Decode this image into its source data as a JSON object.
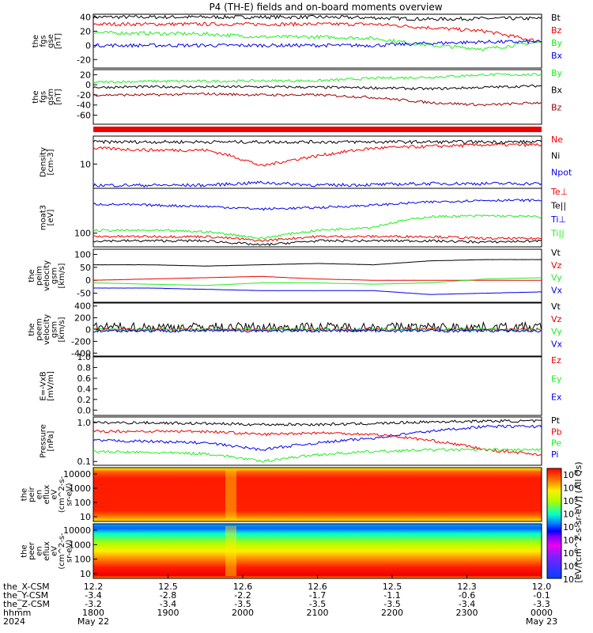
{
  "title": "P4 (TH-E) fields and on-board moments overview",
  "colors": {
    "black": "#000000",
    "red": "#ee0000",
    "green": "#22ee22",
    "blue": "#0000ee",
    "darkred": "#990000"
  },
  "chart_data": [
    {
      "id": "fgs_gse",
      "type": "line",
      "ylabel": [
        "the",
        "fgs",
        "gse",
        "[nT]"
      ],
      "yticks": [
        "40",
        "20",
        "0",
        "-20"
      ],
      "ylim": [
        -32,
        44
      ],
      "series": [
        {
          "name": "Bt",
          "color": "black",
          "values": [
            40,
            40,
            40,
            40,
            40,
            39,
            37,
            38,
            38
          ]
        },
        {
          "name": "Bz",
          "color": "red",
          "values": [
            30,
            30,
            30,
            30,
            30,
            30,
            25,
            20,
            5
          ]
        },
        {
          "name": "By",
          "color": "green",
          "values": [
            18,
            17,
            16,
            12,
            12,
            10,
            0,
            -5,
            5
          ]
        },
        {
          "name": "Bx",
          "color": "blue",
          "values": [
            0,
            0,
            0,
            0,
            0,
            0,
            3,
            5,
            5
          ]
        }
      ]
    },
    {
      "id": "fgs_gsm",
      "type": "line",
      "ylabel": [
        "the",
        "fgs",
        "gsm",
        "[nT]"
      ],
      "yticks": [
        "20",
        "0",
        "-20",
        "-40",
        "-60"
      ],
      "ylim": [
        -78,
        30
      ],
      "series": [
        {
          "name": "By",
          "color": "green",
          "values": [
            5,
            7,
            7,
            8,
            8,
            13,
            15,
            20,
            20
          ]
        },
        {
          "name": "Bx",
          "color": "black",
          "values": [
            -5,
            -4,
            -4,
            -4,
            -5,
            -6,
            -8,
            -5,
            -2
          ]
        },
        {
          "name": "Bz",
          "color": "darkred",
          "values": [
            -20,
            -20,
            -18,
            -20,
            -20,
            -25,
            -35,
            -40,
            -35
          ]
        }
      ]
    },
    {
      "id": "density",
      "type": "line",
      "log": true,
      "ylabel": [
        "Density",
        "[cm-3]"
      ],
      "yticks": [
        "10"
      ],
      "ylim": [
        3,
        40
      ],
      "series": [
        {
          "name": "Ne",
          "color": "red",
          "values": [
            22,
            20,
            20,
            9,
            15,
            22,
            24,
            26,
            26
          ]
        },
        {
          "name": "Ni",
          "color": "black",
          "values": [
            30,
            30,
            30,
            30,
            30,
            30,
            30,
            30,
            30
          ]
        },
        {
          "name": "Npot",
          "color": "blue",
          "values": [
            3.5,
            3.5,
            3.5,
            4,
            3.5,
            3.6,
            3.8,
            3.8,
            3.8
          ]
        }
      ]
    },
    {
      "id": "temperature",
      "type": "line",
      "log": true,
      "ylabel": [
        "moat3",
        "[eV]"
      ],
      "yticks": [
        "100"
      ],
      "ylim": [
        40,
        2000
      ],
      "series": [
        {
          "name": "Te⊥",
          "color": "red",
          "values": [
            80,
            80,
            80,
            60,
            80,
            80,
            80,
            70,
            70
          ]
        },
        {
          "name": "Te||",
          "color": "black",
          "values": [
            60,
            60,
            60,
            45,
            60,
            60,
            60,
            55,
            60
          ]
        },
        {
          "name": "Ti⊥",
          "color": "blue",
          "values": [
            700,
            650,
            600,
            500,
            550,
            650,
            800,
            900,
            900
          ]
        },
        {
          "name": "Ti||",
          "color": "green",
          "values": [
            120,
            120,
            110,
            70,
            120,
            150,
            300,
            320,
            300
          ]
        }
      ]
    },
    {
      "id": "peim_velocity",
      "type": "line",
      "ylabel": [
        "the",
        "peim",
        "velocity",
        "gsm",
        "[km/s]"
      ],
      "yticks": [
        "100",
        "50",
        "0",
        "-50"
      ],
      "ylim": [
        -85,
        120
      ],
      "series": [
        {
          "name": "Vt",
          "color": "black",
          "values": [
            60,
            60,
            55,
            60,
            65,
            60,
            75,
            80,
            80
          ]
        },
        {
          "name": "Vz",
          "color": "red",
          "values": [
            0,
            5,
            10,
            15,
            5,
            0,
            0,
            0,
            0
          ]
        },
        {
          "name": "Vy",
          "color": "green",
          "values": [
            -10,
            -15,
            -20,
            -10,
            -10,
            -15,
            -10,
            5,
            10
          ]
        },
        {
          "name": "Vx",
          "color": "blue",
          "values": [
            -30,
            -30,
            -35,
            -40,
            -40,
            -40,
            -55,
            -50,
            -45
          ]
        }
      ]
    },
    {
      "id": "peem_velocity",
      "type": "line",
      "ylabel": [
        "the",
        "peem",
        "velocity",
        "gsm",
        "[km/s]"
      ],
      "yticks": [
        "400",
        "200",
        "0",
        "-200",
        "-400"
      ],
      "ylim": [
        -450,
        450
      ],
      "series": [
        {
          "name": "Vt",
          "color": "black",
          "values": [
            40,
            40,
            40,
            40,
            40,
            40,
            40,
            40,
            40
          ]
        },
        {
          "name": "Vz",
          "color": "red",
          "values": [
            0,
            0,
            0,
            0,
            0,
            0,
            0,
            0,
            0
          ]
        },
        {
          "name": "Vy",
          "color": "green",
          "values": [
            0,
            0,
            0,
            0,
            0,
            0,
            0,
            0,
            0
          ]
        },
        {
          "name": "Vx",
          "color": "blue",
          "values": [
            -20,
            -20,
            -20,
            -20,
            -20,
            -20,
            -20,
            -20,
            -20
          ]
        }
      ]
    },
    {
      "id": "efield",
      "type": "line",
      "ylabel": [
        "E=-VxB",
        "[mV/m]"
      ],
      "yticks": [
        "1.0",
        "0.8",
        "0.6",
        "0.4",
        "0.2",
        "0.0"
      ],
      "ylim": [
        -0.1,
        1.0
      ],
      "series": [
        {
          "name": "Ez",
          "color": "red",
          "values": []
        },
        {
          "name": "Ey",
          "color": "green",
          "values": []
        },
        {
          "name": "Ex",
          "color": "blue",
          "values": []
        }
      ]
    },
    {
      "id": "pressure",
      "type": "line",
      "log": true,
      "ylabel": [
        "Pressure",
        "[nPa]"
      ],
      "yticks": [
        "1.0",
        "0.1"
      ],
      "ylim": [
        0.08,
        1.4
      ],
      "series": [
        {
          "name": "Pt",
          "color": "black",
          "values": [
            1.0,
            1.0,
            0.95,
            0.9,
            0.9,
            0.95,
            1.05,
            1.1,
            1.1
          ]
        },
        {
          "name": "Pb",
          "color": "red",
          "values": [
            0.6,
            0.6,
            0.6,
            0.5,
            0.55,
            0.5,
            0.35,
            0.2,
            0.15
          ]
        },
        {
          "name": "Pe",
          "color": "green",
          "values": [
            0.18,
            0.17,
            0.16,
            0.1,
            0.15,
            0.18,
            0.2,
            0.2,
            0.2
          ]
        },
        {
          "name": "Pi",
          "color": "blue",
          "values": [
            0.35,
            0.33,
            0.3,
            0.2,
            0.3,
            0.4,
            0.6,
            0.8,
            0.8
          ]
        }
      ]
    },
    {
      "id": "peir_spec",
      "type": "heatmap",
      "ylabel": [
        "the",
        "peir",
        "en",
        "eflux",
        "eV",
        "(cm^2-s-",
        "sr-eV)"
      ],
      "yticks": [
        "10000",
        "1000",
        "100",
        "10"
      ]
    },
    {
      "id": "peer_spec",
      "type": "heatmap",
      "ylabel": [
        "the",
        "peer",
        "en",
        "eflux",
        "eV",
        "(cm^2-s-",
        "sr-eV)"
      ],
      "yticks": [
        "10000",
        "1000",
        "100",
        "10"
      ]
    }
  ],
  "colorbar": {
    "ticks": [
      "10^8",
      "10^6",
      "10^4",
      "10^2",
      "10^0",
      "10^8",
      "10^6",
      "10^4",
      "10^2"
    ],
    "label": "[eV/(cm^2-s-sr-eV)] (All Qs)"
  },
  "xaxis": {
    "row_labels": [
      "the_X-CSM",
      "the_Y-CSM",
      "the_Z-CSM",
      "hhmm",
      "2024"
    ],
    "columns": [
      {
        "x": "12.2",
        "y": "-3.4",
        "z": "-3.2",
        "hhmm": "1800",
        "date": "May 22"
      },
      {
        "x": "12.5",
        "y": "-2.8",
        "z": "-3.4",
        "hhmm": "1900",
        "date": ""
      },
      {
        "x": "12.6",
        "y": "-2.2",
        "z": "-3.5",
        "hhmm": "2000",
        "date": ""
      },
      {
        "x": "12.6",
        "y": "-1.7",
        "z": "-3.5",
        "hhmm": "2100",
        "date": ""
      },
      {
        "x": "12.5",
        "y": "-1.1",
        "z": "-3.5",
        "hhmm": "2200",
        "date": ""
      },
      {
        "x": "12.3",
        "y": "-0.6",
        "z": "-3.4",
        "hhmm": "2300",
        "date": ""
      },
      {
        "x": "12.0",
        "y": "-0.1",
        "z": "-3.3",
        "hhmm": "0000",
        "date": "May 23"
      }
    ]
  }
}
